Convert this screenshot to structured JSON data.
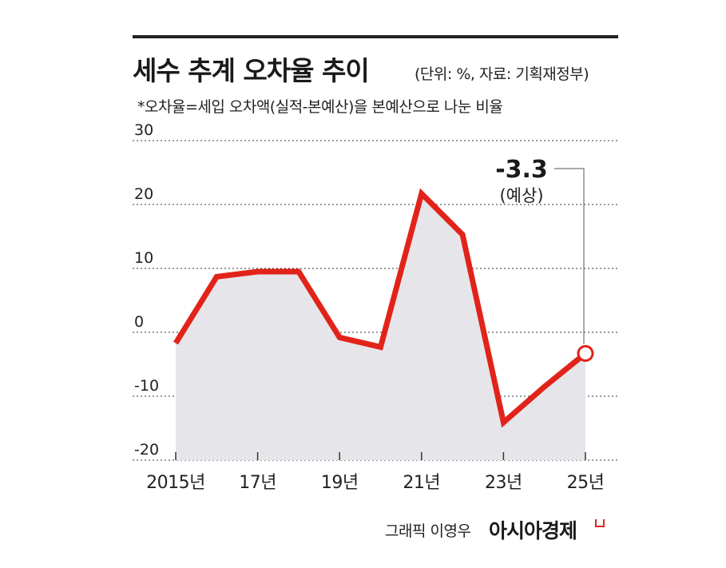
{
  "title": "세수 추계 오차율 추이",
  "unit_source": "(단위: %, 자료: 기획재정부)",
  "note": "*오차율=세입 오차액(실적-본예산)을 본예산으로 나눈 비율",
  "credit": "그래픽 이영우",
  "brand": "아시아경제",
  "colors": {
    "line": "#e2231a",
    "area": "#e6e6ea",
    "grid": "#333333",
    "text": "#222222"
  },
  "chart_data": {
    "type": "line",
    "title": "세수 추계 오차율 추이",
    "x": [
      2015,
      2016,
      2017,
      2018,
      2019,
      2020,
      2021,
      2022,
      2023,
      2024,
      2025
    ],
    "x_tick_values": [
      2015,
      2017,
      2019,
      2021,
      2023,
      2025
    ],
    "x_tick_labels": [
      "2015년",
      "17년",
      "19년",
      "21년",
      "23년",
      "25년"
    ],
    "series": [
      {
        "values": [
          -1.7,
          8.7,
          9.5,
          9.5,
          -0.8,
          -2.3,
          21.7,
          15.3,
          -14.1,
          -8.5,
          -3.3
        ]
      }
    ],
    "ylim": [
      -20,
      30
    ],
    "y_ticks": [
      30,
      20,
      10,
      0,
      -10,
      -20
    ],
    "y_tick_labels": [
      "30",
      "20",
      "10",
      "0",
      "-10",
      "-20"
    ],
    "grid": "horizontal dotted",
    "area_fill": true,
    "annotation": {
      "x": 2025,
      "value_label": "-3.3",
      "sub_label": "(예상)"
    }
  }
}
